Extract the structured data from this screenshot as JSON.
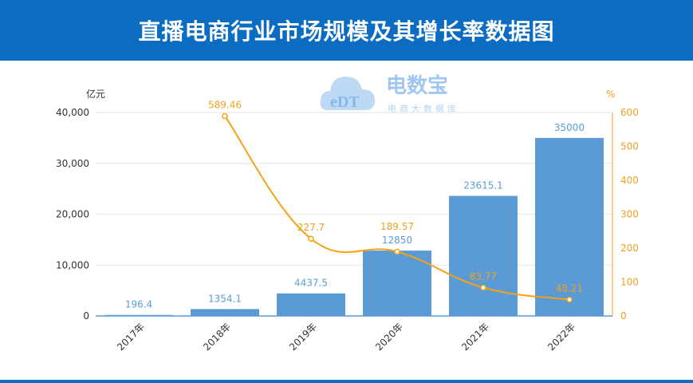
{
  "chart_data": {
    "type": "bar+line",
    "title": "直播电商行业市场规模及其增长率数据图",
    "categories": [
      "2017年",
      "2018年",
      "2019年",
      "2020年",
      "2021年",
      "2022年"
    ],
    "series": [
      {
        "type": "bar",
        "axis": "left",
        "values": [
          196.4,
          1354.1,
          4437.5,
          12850,
          23615.1,
          35000
        ],
        "color": "#5b9bd5"
      },
      {
        "type": "line",
        "axis": "right",
        "values": [
          null,
          589.46,
          227.7,
          189.57,
          83.77,
          48.21
        ],
        "color": "#f5a214"
      }
    ],
    "left_axis": {
      "unit": "亿元",
      "range": [
        0,
        40000
      ],
      "ticks": [
        "0",
        "10,000",
        "20,000",
        "30,000",
        "40,000"
      ],
      "tick_values": [
        0,
        10000,
        20000,
        30000,
        40000
      ]
    },
    "right_axis": {
      "unit": "%",
      "range": [
        0,
        600
      ],
      "ticks": [
        "0",
        "100",
        "200",
        "300",
        "400",
        "500",
        "600"
      ],
      "tick_values": [
        0,
        100,
        200,
        300,
        400,
        500,
        600
      ]
    },
    "bar_labels": [
      "196.4",
      "1354.1",
      "4437.5",
      "12850",
      "23615.1",
      "35000"
    ],
    "line_labels": [
      "",
      "589.46",
      "227.7",
      "189.57",
      "83.77",
      "48.21"
    ],
    "grid": true,
    "colors": {
      "title_bg": "#0b6cc1",
      "bar": "#5b9bd5",
      "line": "#f5a214"
    }
  },
  "watermark": {
    "brand": "电数宝",
    "subtitle": "电商大数据库",
    "mark": "eDT"
  }
}
